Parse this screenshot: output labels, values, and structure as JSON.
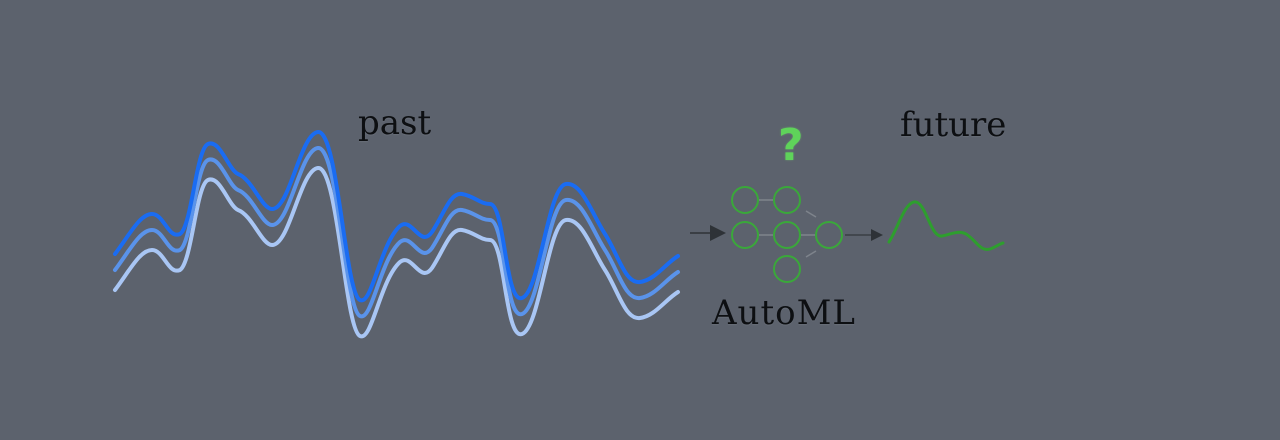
{
  "labels": {
    "past": "past",
    "future": "future",
    "automl": "AutoML",
    "question": "?"
  },
  "colors": {
    "background": "#5c626d",
    "series_dark": "#1a6cf2",
    "series_mid": "#5a93ea",
    "series_light": "#a9c6f4",
    "network": "#3aa83a",
    "forecast": "#2e9e2e",
    "question": "#5fd35a",
    "arrow": "#3a3e44"
  },
  "icons": {
    "network": "neural-network-icon",
    "arrow_in": "arrow-right-icon",
    "arrow_out": "arrow-right-icon"
  }
}
